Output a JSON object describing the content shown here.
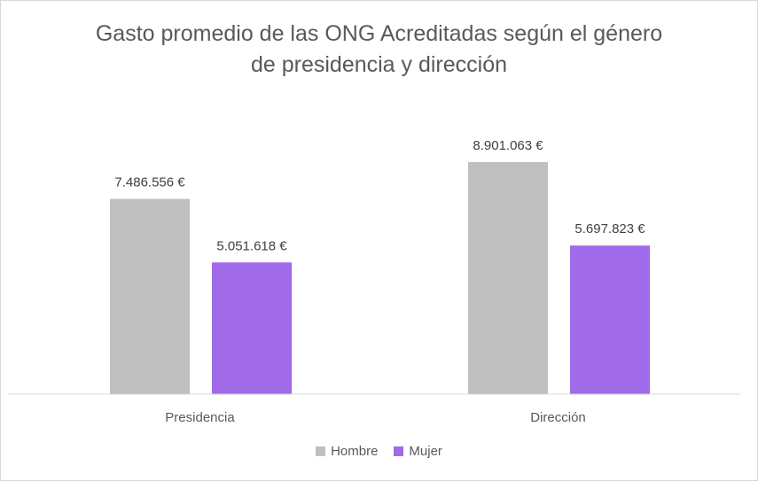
{
  "chart_data": {
    "type": "bar",
    "title_lines": [
      "Gasto promedio de las ONG Acreditadas según el género",
      "de presidencia y dirección"
    ],
    "categories": [
      "Presidencia",
      "Dirección"
    ],
    "series": [
      {
        "name": "Hombre",
        "color": "#bfbfbf",
        "values": [
          7486556,
          8901063
        ],
        "labels": [
          "7.486.556 €",
          "8.901.063 €"
        ]
      },
      {
        "name": "Mujer",
        "color": "#a06ae8",
        "values": [
          5051618,
          5697823
        ],
        "labels": [
          "5.051.618 €",
          "5.697.823 €"
        ]
      }
    ],
    "ylim": [
      0,
      10800000
    ],
    "grid": false,
    "legend_position": "bottom"
  }
}
